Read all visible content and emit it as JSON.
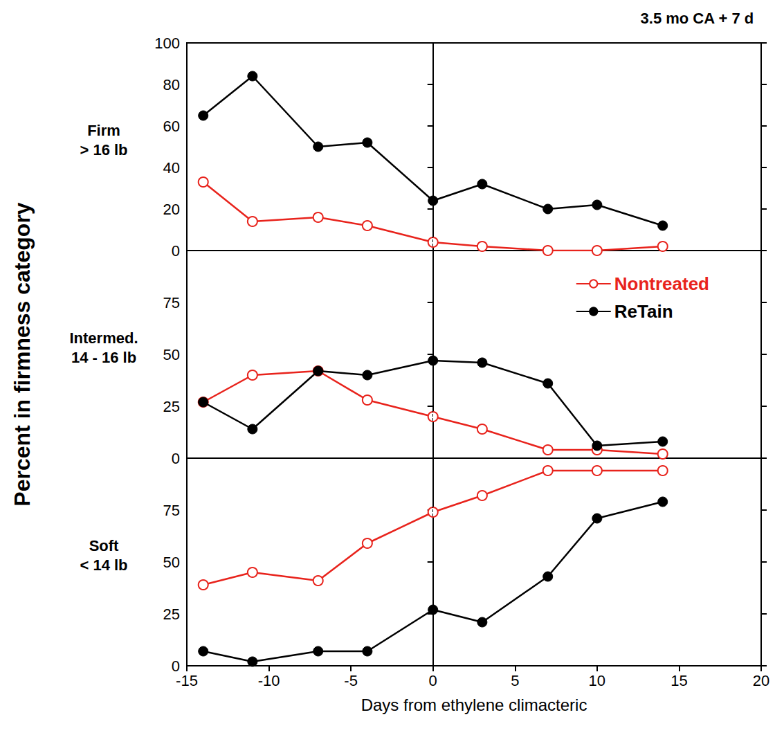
{
  "chart_data": {
    "type": "line",
    "title": "3.5 mo CA + 7 d",
    "xlabel": "Days from ethylene climacteric",
    "ylabel": "Percent in firmness category",
    "x": [
      -14,
      -11,
      -7,
      -4,
      0,
      3,
      7,
      10,
      14
    ],
    "xlim": [
      -15,
      20
    ],
    "xticks": [
      -15,
      -10,
      -5,
      0,
      5,
      10,
      15,
      20
    ],
    "vline_x": 0,
    "grid": false,
    "legend": "upper right",
    "panels": [
      {
        "label": "Firm\n> 16 lb",
        "ylim": [
          0,
          100
        ],
        "yticks": [
          0,
          20,
          40,
          60,
          80,
          100
        ],
        "series": [
          {
            "name": "Nontreated",
            "color": "#e8231c",
            "marker": "open circle",
            "values": [
              33,
              14,
              16,
              12,
              4,
              2,
              0,
              0,
              2
            ]
          },
          {
            "name": "ReTain",
            "color": "#000000",
            "marker": "filled circle",
            "values": [
              65,
              84,
              50,
              52,
              24,
              32,
              20,
              22,
              12
            ]
          }
        ]
      },
      {
        "label": "Intermed.\n14 - 16 lb",
        "ylim": [
          0,
          100
        ],
        "yticks": [
          0,
          25,
          50,
          75
        ],
        "series": [
          {
            "name": "Nontreated",
            "color": "#e8231c",
            "marker": "open circle",
            "values": [
              27,
              40,
              42,
              28,
              20,
              14,
              4,
              4,
              2
            ]
          },
          {
            "name": "ReTain",
            "color": "#000000",
            "marker": "filled circle",
            "values": [
              27,
              14,
              42,
              40,
              47,
              46,
              36,
              6,
              8
            ]
          }
        ]
      },
      {
        "label": "Soft\n< 14 lb",
        "ylim": [
          0,
          100
        ],
        "yticks": [
          0,
          25,
          50,
          75
        ],
        "series": [
          {
            "name": "Nontreated",
            "color": "#e8231c",
            "marker": "open circle",
            "values": [
              39,
              45,
              41,
              59,
              74,
              82,
              94,
              94,
              94
            ]
          },
          {
            "name": "ReTain",
            "color": "#000000",
            "marker": "filled circle",
            "values": [
              7,
              2,
              7,
              7,
              27,
              21,
              43,
              71,
              79
            ]
          }
        ]
      }
    ]
  }
}
